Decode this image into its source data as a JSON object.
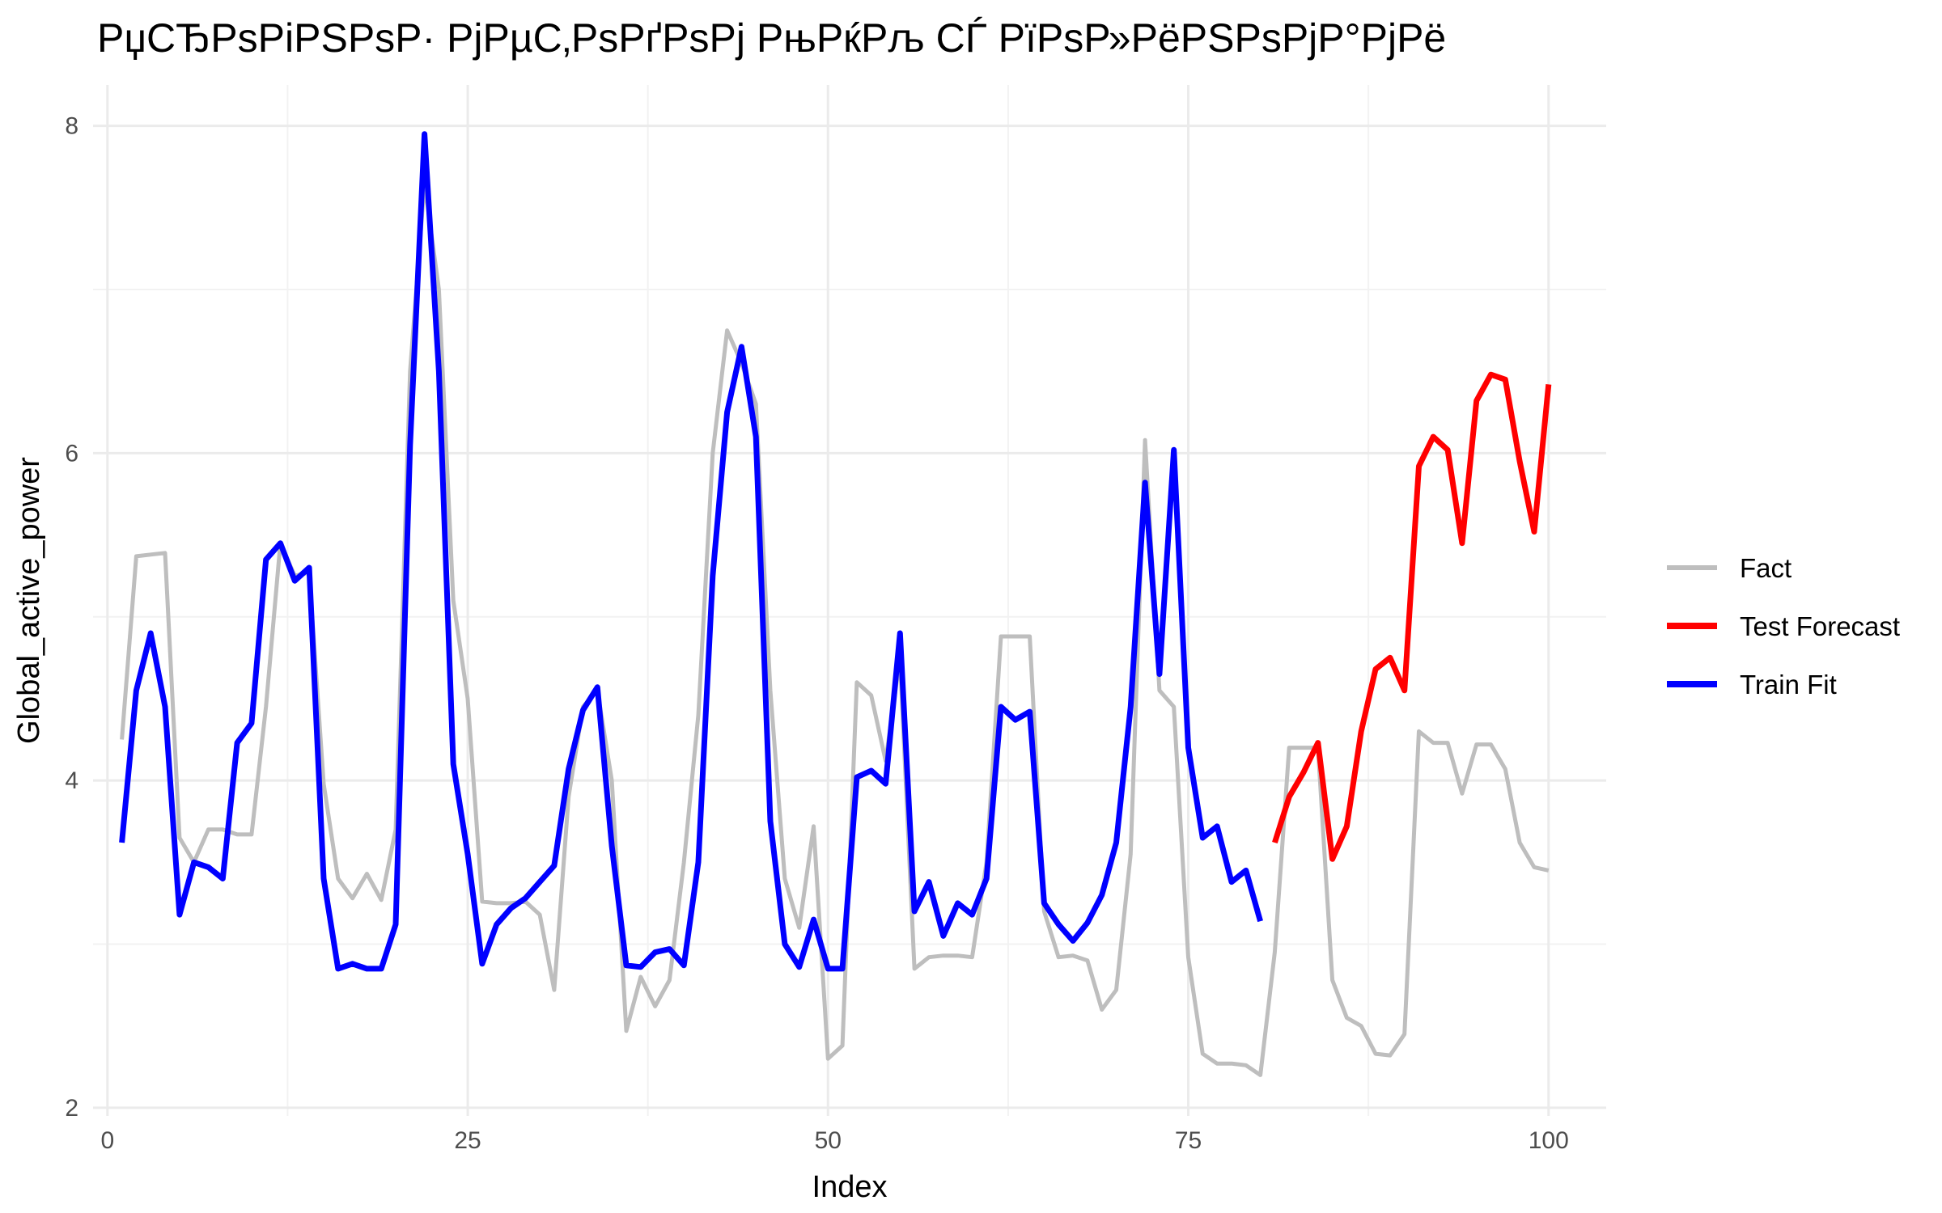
{
  "chart_data": {
    "type": "line",
    "title": "РџСЂРѕРіРЅРѕР· РјРµС‚РѕРґРѕРј РњРќРљ СЃ РїРѕР»РёРЅРѕРјР°РјРё",
    "xlabel": "Index",
    "ylabel": "Global_active_power",
    "xlim": [
      -1,
      104
    ],
    "ylim": [
      1.95,
      8.25
    ],
    "xticks": [
      0,
      25,
      50,
      75,
      100
    ],
    "yticks": [
      2,
      4,
      6,
      8
    ],
    "grid": true,
    "legend_position": "right",
    "series": [
      {
        "name": "Fact",
        "color": "#bebebe",
        "x": [
          1,
          2,
          3,
          4,
          5,
          6,
          7,
          8,
          9,
          10,
          11,
          12,
          13,
          14,
          15,
          16,
          17,
          18,
          19,
          20,
          21,
          22,
          23,
          24,
          25,
          26,
          27,
          28,
          29,
          30,
          31,
          32,
          33,
          34,
          35,
          36,
          37,
          38,
          39,
          40,
          41,
          42,
          43,
          44,
          45,
          46,
          47,
          48,
          49,
          50,
          51,
          52,
          53,
          54,
          55,
          56,
          57,
          58,
          59,
          60,
          61,
          62,
          63,
          64,
          65,
          66,
          67,
          68,
          69,
          70,
          71,
          72,
          73,
          74,
          75,
          76,
          77,
          78,
          79,
          80,
          81,
          82,
          83,
          84,
          85,
          86,
          87,
          88,
          89,
          90,
          91,
          92,
          93,
          94,
          95,
          96,
          97,
          98,
          99,
          100
        ],
        "values": [
          4.25,
          5.37,
          5.38,
          5.39,
          3.65,
          3.5,
          3.7,
          3.7,
          3.67,
          3.67,
          4.45,
          5.45,
          5.25,
          5.27,
          3.98,
          3.4,
          3.28,
          3.43,
          3.27,
          3.7,
          6.5,
          7.65,
          7.0,
          5.1,
          4.5,
          3.26,
          3.25,
          3.25,
          3.26,
          3.18,
          2.72,
          3.9,
          4.45,
          4.55,
          4.0,
          2.47,
          2.8,
          2.62,
          2.78,
          3.5,
          4.4,
          6.0,
          6.75,
          6.55,
          6.3,
          4.55,
          3.4,
          3.1,
          3.72,
          2.3,
          2.38,
          4.6,
          4.52,
          4.12,
          4.75,
          2.85,
          2.92,
          2.93,
          2.93,
          2.92,
          3.5,
          4.88,
          4.88,
          4.88,
          3.2,
          2.92,
          2.93,
          2.9,
          2.6,
          2.72,
          3.55,
          6.08,
          4.55,
          4.45,
          2.92,
          2.33,
          2.27,
          2.27,
          2.26,
          2.2,
          2.95,
          4.2,
          4.2,
          4.2,
          2.78,
          2.55,
          2.5,
          2.33,
          2.32,
          2.45,
          4.3,
          4.23,
          4.23,
          3.92,
          4.22,
          4.22,
          4.07,
          3.62,
          3.47,
          3.45
        ]
      },
      {
        "name": "Test Forecast",
        "color": "#ff0000",
        "x": [
          81,
          82,
          83,
          84,
          85,
          86,
          87,
          88,
          89,
          90,
          91,
          92,
          93,
          94,
          95,
          96,
          97,
          98,
          99,
          100
        ],
        "values": [
          3.62,
          3.9,
          4.05,
          4.23,
          3.52,
          3.72,
          4.3,
          4.68,
          4.75,
          4.55,
          5.92,
          6.1,
          6.02,
          5.45,
          6.32,
          6.48,
          6.45,
          5.95,
          5.52,
          6.42
        ]
      },
      {
        "name": "Train Fit",
        "color": "#0000ff",
        "x": [
          1,
          2,
          3,
          4,
          5,
          6,
          7,
          8,
          9,
          10,
          11,
          12,
          13,
          14,
          15,
          16,
          17,
          18,
          19,
          20,
          21,
          22,
          23,
          24,
          25,
          26,
          27,
          28,
          29,
          30,
          31,
          32,
          33,
          34,
          35,
          36,
          37,
          38,
          39,
          40,
          41,
          42,
          43,
          44,
          45,
          46,
          47,
          48,
          49,
          50,
          51,
          52,
          53,
          54,
          55,
          56,
          57,
          58,
          59,
          60,
          61,
          62,
          63,
          64,
          65,
          66,
          67,
          68,
          69,
          70,
          71,
          72,
          73,
          74,
          75,
          76,
          77,
          78,
          79,
          80
        ],
        "values": [
          3.62,
          4.55,
          4.9,
          4.45,
          3.18,
          3.5,
          3.47,
          3.4,
          4.23,
          4.35,
          5.35,
          5.45,
          5.22,
          5.3,
          3.4,
          2.85,
          2.88,
          2.85,
          2.85,
          3.12,
          6.05,
          7.95,
          6.5,
          4.1,
          3.55,
          2.88,
          3.12,
          3.22,
          3.28,
          3.38,
          3.48,
          4.07,
          4.43,
          4.57,
          3.6,
          2.87,
          2.86,
          2.95,
          2.97,
          2.87,
          3.5,
          5.25,
          6.25,
          6.65,
          6.1,
          3.75,
          3.0,
          2.86,
          3.15,
          2.85,
          2.85,
          4.02,
          4.06,
          3.98,
          4.9,
          3.2,
          3.38,
          3.05,
          3.25,
          3.18,
          3.4,
          4.45,
          4.37,
          4.42,
          3.25,
          3.12,
          3.02,
          3.13,
          3.3,
          3.62,
          4.45,
          5.82,
          4.65,
          6.02,
          4.2,
          3.65,
          3.72,
          3.38,
          3.45,
          3.14
        ]
      }
    ]
  }
}
